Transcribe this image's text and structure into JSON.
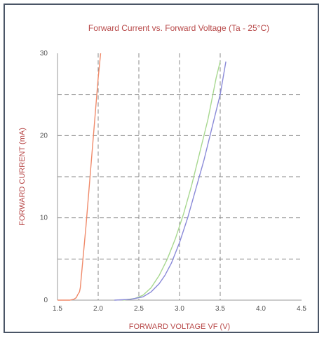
{
  "chart_data": {
    "type": "line",
    "title": "Forward Current vs. Forward Voltage (Ta - 25°C)",
    "xlabel": "FORWARD VOLTAGE VF (V)",
    "ylabel": "FORWARD CURRENT (mA)",
    "xlim": [
      1.5,
      4.5
    ],
    "ylim": [
      0,
      30
    ],
    "x_ticks": [
      "1.5",
      "2.0",
      "2.5",
      "3.0",
      "3.5",
      "4.0",
      "4.5"
    ],
    "y_ticks": [
      "0",
      "10",
      "20",
      "30"
    ],
    "grid": true,
    "grid_x_dashed": [
      2.0,
      2.5,
      3.0,
      3.5
    ],
    "grid_y_dashed": [
      5,
      10,
      15,
      20,
      25
    ],
    "series": [
      {
        "color": "#f08a6a",
        "x": [
          1.5,
          1.65,
          1.7,
          1.73,
          1.75,
          1.77,
          1.78,
          1.85,
          1.9,
          1.95,
          2.0,
          2.03
        ],
        "y": [
          0,
          0,
          0.1,
          0.3,
          0.7,
          1.0,
          1.5,
          9,
          15,
          21,
          27,
          30
        ]
      },
      {
        "color": "#a8d890",
        "x": [
          2.3,
          2.45,
          2.55,
          2.65,
          2.75,
          2.85,
          2.95,
          3.05,
          3.15,
          3.25,
          3.35,
          3.45,
          3.5
        ],
        "y": [
          0,
          0.2,
          0.6,
          1.5,
          3.0,
          5.0,
          7.5,
          10.5,
          14.0,
          18.0,
          22.0,
          27.0,
          29.0
        ]
      },
      {
        "color": "#8a8ad8",
        "x": [
          2.2,
          2.4,
          2.55,
          2.65,
          2.75,
          2.82,
          2.9,
          3.0,
          3.1,
          3.2,
          3.3,
          3.4,
          3.5,
          3.57
        ],
        "y": [
          0,
          0.1,
          0.4,
          1.0,
          2.0,
          3.0,
          4.5,
          7.0,
          10.0,
          13.5,
          17.0,
          21.0,
          25.0,
          29.0
        ]
      }
    ]
  }
}
